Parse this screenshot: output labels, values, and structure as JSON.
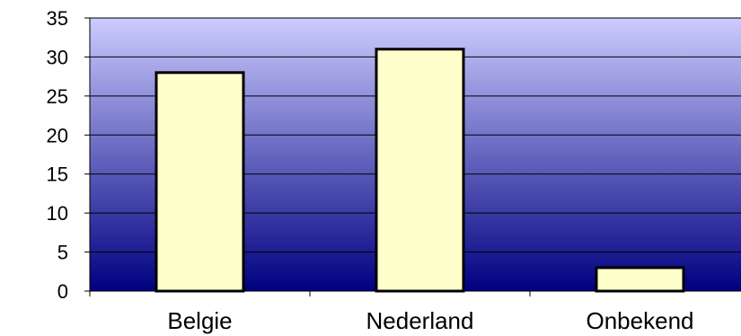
{
  "chart_data": {
    "type": "bar",
    "categories": [
      "Belgie",
      "Nederland",
      "Onbekend"
    ],
    "values": [
      28,
      31,
      3
    ],
    "ylim": [
      0,
      35
    ],
    "yticks": [
      0,
      5,
      10,
      15,
      20,
      25,
      30,
      35
    ],
    "grid": true,
    "legend": "none"
  },
  "colors": {
    "bar_fill": "#FFFFCC",
    "bar_stroke": "#000000",
    "gradient_top": "#CCCCFF",
    "gradient_bottom": "#000080",
    "grid": "#000000"
  }
}
